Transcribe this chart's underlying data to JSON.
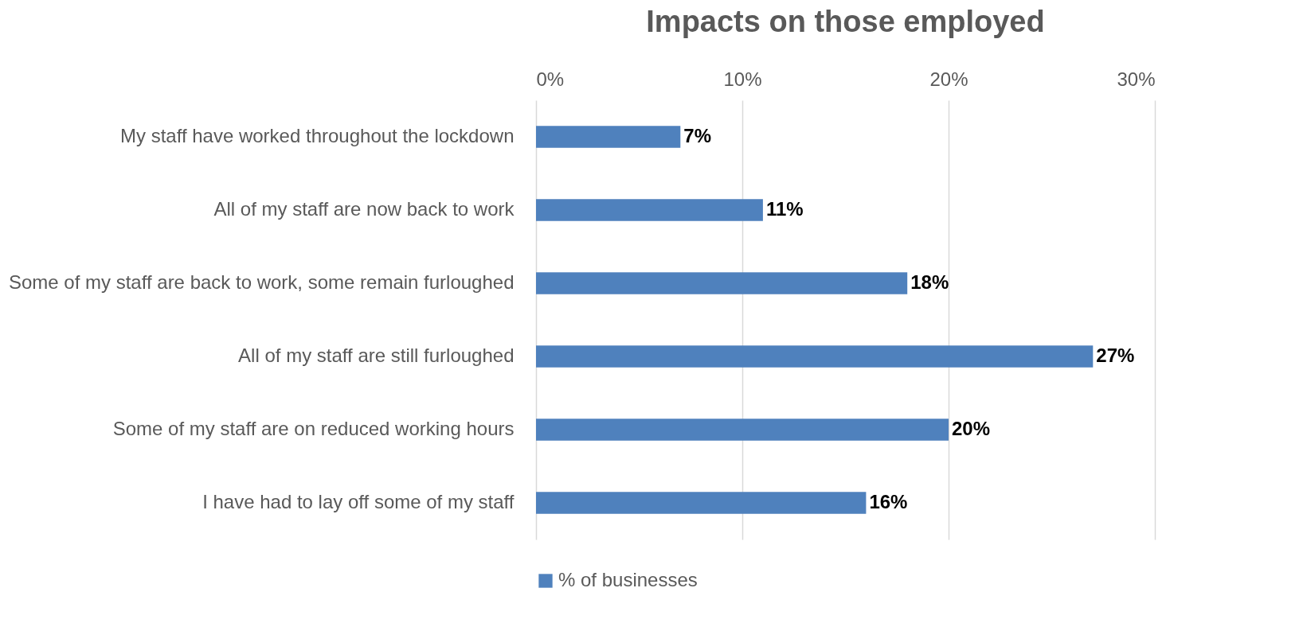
{
  "chart_data": {
    "type": "bar",
    "orientation": "horizontal",
    "title": "Impacts on those employed",
    "categories": [
      "My staff have worked throughout the lockdown",
      "All of my staff are now back to work",
      "Some of my staff are back to work, some remain furloughed",
      "All of my staff are still furloughed",
      "Some of my staff are on reduced working hours",
      "I have had to lay off some of my staff"
    ],
    "series": [
      {
        "name": "% of businesses",
        "color": "#4f81bd",
        "values": [
          7,
          11,
          18,
          27,
          20,
          16
        ],
        "value_labels": [
          "7%",
          "11%",
          "18%",
          "27%",
          "20%",
          "16%"
        ]
      }
    ],
    "xlim": [
      0,
      30
    ],
    "xticks": [
      {
        "value": 0,
        "label": "0%"
      },
      {
        "value": 10,
        "label": "10%"
      },
      {
        "value": 20,
        "label": "20%"
      },
      {
        "value": 30,
        "label": "30%"
      }
    ],
    "grid": "x",
    "legend": "bottom"
  }
}
